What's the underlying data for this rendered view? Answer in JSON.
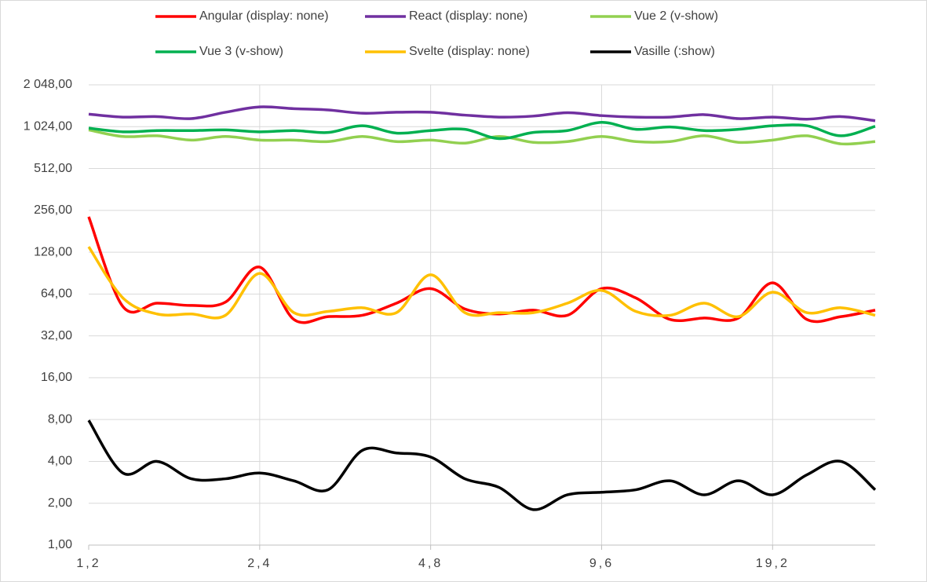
{
  "chart_data": {
    "type": "line",
    "categories": [
      "1,2",
      null,
      null,
      null,
      null,
      "2,4",
      null,
      null,
      null,
      null,
      "4,8",
      null,
      null,
      null,
      null,
      "9,6",
      null,
      null,
      null,
      null,
      "19,2",
      null,
      null,
      null
    ],
    "series": [
      {
        "name": "Angular (display: none)",
        "color": "#ff0000",
        "values": [
          230,
          52,
          55,
          53,
          56,
          100,
          42,
          44,
          45,
          55,
          70,
          50,
          46,
          49,
          45,
          70,
          60,
          42,
          43,
          43,
          77,
          42,
          44,
          49
        ]
      },
      {
        "name": "React (display: none)",
        "color": "#7030a0",
        "values": [
          1260,
          1200,
          1210,
          1170,
          1300,
          1420,
          1380,
          1350,
          1280,
          1300,
          1300,
          1240,
          1200,
          1220,
          1290,
          1230,
          1200,
          1200,
          1250,
          1170,
          1200,
          1160,
          1210,
          1130
        ]
      },
      {
        "name": "Vue 2 (v-show)",
        "color": "#92d050",
        "values": [
          970,
          870,
          880,
          820,
          870,
          820,
          820,
          800,
          870,
          800,
          820,
          780,
          870,
          790,
          800,
          870,
          800,
          800,
          880,
          790,
          820,
          880,
          770,
          800
        ]
      },
      {
        "name": "Vue 3 (v-show)",
        "color": "#00b050",
        "values": [
          1000,
          940,
          960,
          960,
          970,
          940,
          960,
          930,
          1040,
          920,
          960,
          980,
          840,
          930,
          960,
          1100,
          980,
          1020,
          960,
          980,
          1040,
          1040,
          880,
          1030
        ]
      },
      {
        "name": "Svelte (display: none)",
        "color": "#ffc000",
        "values": [
          140,
          60,
          46,
          46,
          45,
          90,
          47,
          48,
          51,
          47,
          88,
          47,
          47,
          47,
          55,
          68,
          48,
          45,
          55,
          44,
          66,
          47,
          51,
          45
        ]
      },
      {
        "name": "Vasille (:show)",
        "color": "#000000",
        "values": [
          7.9,
          3.3,
          4.0,
          3.0,
          3.0,
          3.3,
          2.9,
          2.5,
          4.8,
          4.6,
          4.3,
          3.0,
          2.6,
          1.8,
          2.3,
          2.4,
          2.5,
          2.9,
          2.3,
          2.9,
          2.3,
          3.2,
          4.0,
          2.5
        ]
      }
    ],
    "ylim": [
      1,
      2048
    ],
    "log_scale": true,
    "grid": true,
    "legend": "top",
    "yticks": [
      {
        "value": 1,
        "label": "1,00"
      },
      {
        "value": 2,
        "label": "2,00"
      },
      {
        "value": 4,
        "label": "4,00"
      },
      {
        "value": 8,
        "label": "8,00"
      },
      {
        "value": 16,
        "label": "16,00"
      },
      {
        "value": 32,
        "label": "32,00"
      },
      {
        "value": 64,
        "label": "64,00"
      },
      {
        "value": 128,
        "label": "128,00"
      },
      {
        "value": 256,
        "label": "256,00"
      },
      {
        "value": 512,
        "label": "512,00"
      },
      {
        "value": 1024,
        "label": "1 024,00"
      },
      {
        "value": 2048,
        "label": "2 048,00"
      }
    ]
  }
}
